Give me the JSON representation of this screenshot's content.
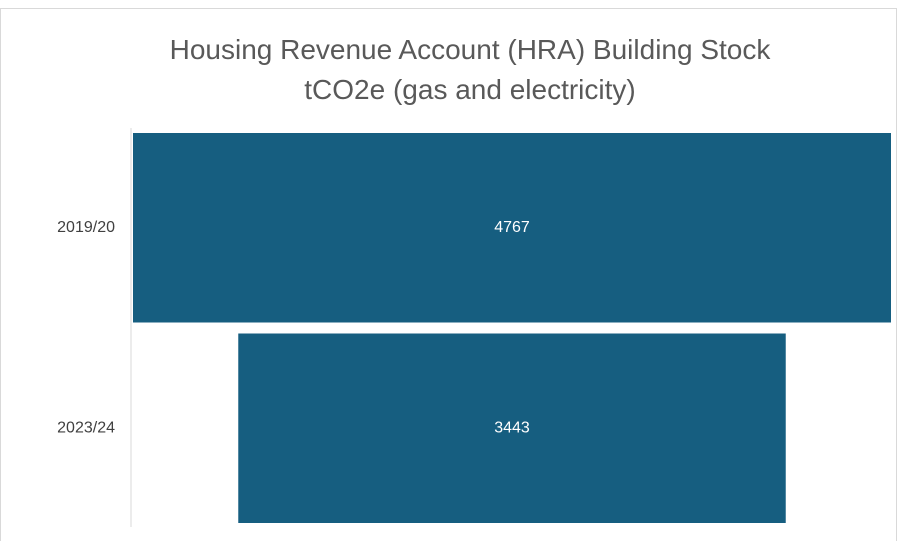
{
  "chart_data": {
    "type": "funnel",
    "title": "Housing Revenue Account (HRA) Building Stock tCO2e (gas and electricity)",
    "categories": [
      "2019/20",
      "2023/24"
    ],
    "values": [
      4767,
      3443
    ],
    "color": "#165e80"
  }
}
